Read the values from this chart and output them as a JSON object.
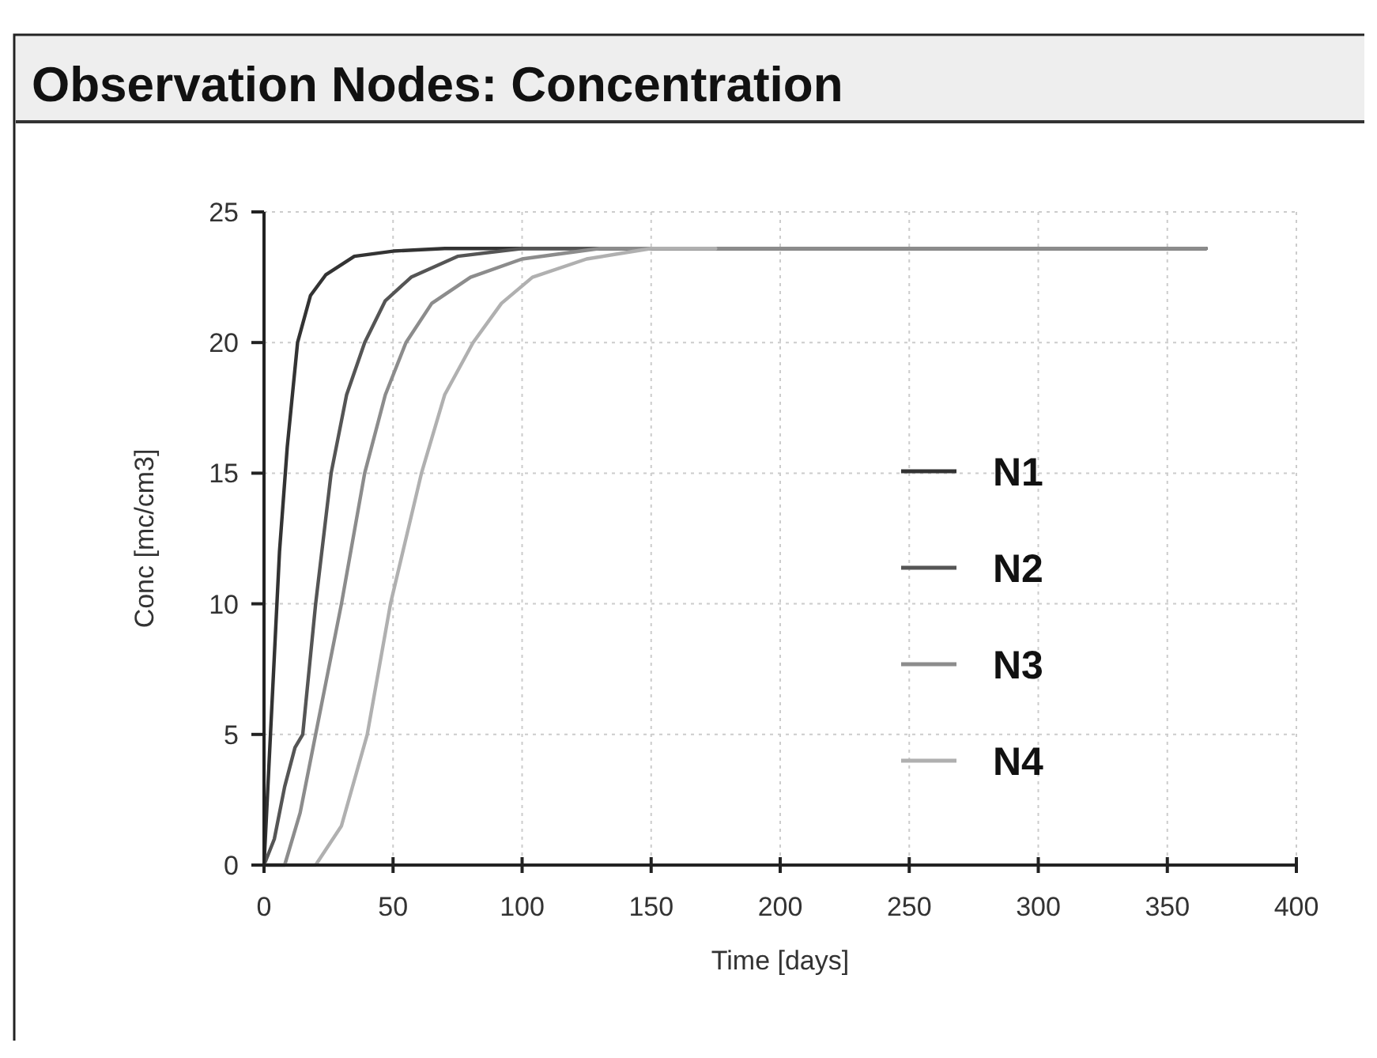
{
  "chart_data": {
    "type": "line",
    "title": "Observation Nodes: Concentration",
    "xlabel": "Time [days]",
    "ylabel": "Conc [mc/cm3]",
    "xlim": [
      0,
      400
    ],
    "xticks": [
      0,
      50,
      100,
      150,
      200,
      250,
      300,
      350,
      400
    ],
    "ylim": [
      0,
      25
    ],
    "yticks": [
      0,
      5,
      10,
      15,
      20,
      25
    ],
    "grid": true,
    "legend": "right",
    "line_style": "solid",
    "marker": "none",
    "series": [
      {
        "name": "N1",
        "color": "#333333",
        "x": [
          0,
          2,
          4,
          6,
          9,
          13,
          18,
          24,
          35,
          50,
          70,
          365
        ],
        "values": [
          0,
          4,
          8,
          12,
          16,
          20,
          21.8,
          22.6,
          23.3,
          23.5,
          23.6,
          23.6
        ]
      },
      {
        "name": "N2",
        "color": "#555555",
        "x": [
          0,
          4,
          8,
          12,
          15,
          20,
          26,
          32,
          39,
          47,
          57,
          75,
          100,
          365
        ],
        "values": [
          0,
          1,
          3,
          4.5,
          5,
          10,
          15,
          18,
          20,
          21.6,
          22.5,
          23.3,
          23.6,
          23.6
        ]
      },
      {
        "name": "N3",
        "color": "#8c8c8c",
        "x": [
          0,
          8,
          14,
          20,
          30,
          39,
          47,
          55,
          65,
          80,
          100,
          130,
          365
        ],
        "values": [
          0,
          0,
          2,
          5,
          10,
          15,
          18,
          20,
          21.5,
          22.5,
          23.2,
          23.6,
          23.6
        ]
      },
      {
        "name": "N4",
        "color": "#b0b0b0",
        "x": [
          0,
          20,
          30,
          40,
          49,
          61,
          70,
          81,
          92,
          104,
          125,
          150,
          175
        ],
        "values": [
          0,
          0,
          1.5,
          5,
          10,
          15,
          18,
          20,
          21.5,
          22.5,
          23.2,
          23.6,
          23.6
        ]
      }
    ]
  }
}
